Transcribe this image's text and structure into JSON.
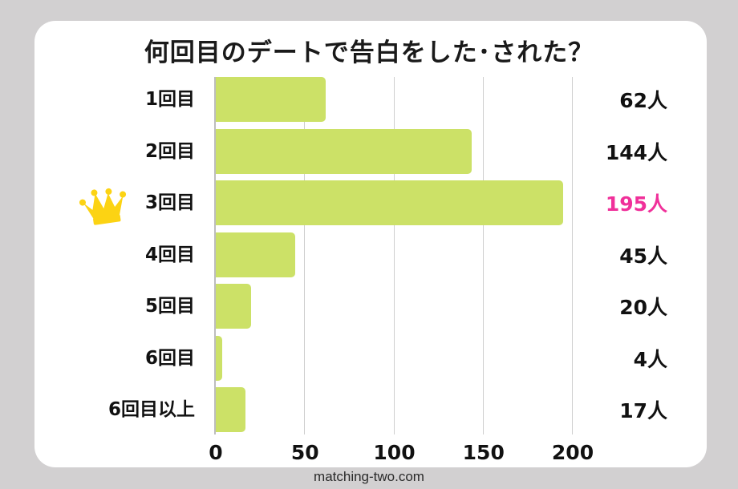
{
  "title": "何回目のデートで告白をした･された？",
  "footer": "matching-two.com",
  "colors": {
    "bar": "#cce167",
    "highlight": "#f0309a",
    "background": "#d2d0d1",
    "card": "#ffffff",
    "crown": "#fcd313"
  },
  "axis": {
    "ticks": [
      "0",
      "50",
      "100",
      "150",
      "200"
    ]
  },
  "rows": [
    {
      "label": "1回目",
      "value": 62,
      "value_label": "62人"
    },
    {
      "label": "2回目",
      "value": 144,
      "value_label": "144人"
    },
    {
      "label": "3回目",
      "value": 195,
      "value_label": "195人",
      "highlight": true
    },
    {
      "label": "4回目",
      "value": 45,
      "value_label": "45人"
    },
    {
      "label": "5回目",
      "value": 20,
      "value_label": "20人"
    },
    {
      "label": "6回目",
      "value": 4,
      "value_label": "4人"
    },
    {
      "label": "6回目以上",
      "value": 17,
      "value_label": "17人"
    }
  ],
  "chart_data": {
    "type": "bar",
    "orientation": "horizontal",
    "title": "何回目のデートで告白をした･された？",
    "categories": [
      "1回目",
      "2回目",
      "3回目",
      "4回目",
      "5回目",
      "6回目",
      "6回目以上"
    ],
    "values": [
      62,
      144,
      195,
      45,
      20,
      4,
      17
    ],
    "unit": "人",
    "xlabel": "",
    "ylabel": "",
    "xlim": [
      0,
      200
    ],
    "xticks": [
      0,
      50,
      100,
      150,
      200
    ],
    "grid": true,
    "legend": null,
    "annotations": [
      "crown icon next to 3回目 (max)",
      "195人 highlighted in pink"
    ],
    "source": "matching-two.com"
  }
}
